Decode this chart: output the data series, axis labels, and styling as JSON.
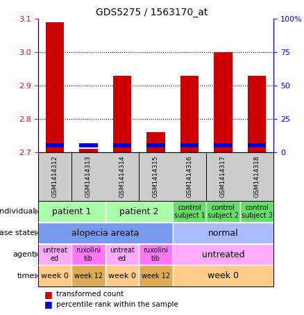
{
  "title": "GDS5275 / 1563170_at",
  "samples": [
    "GSM1414312",
    "GSM1414313",
    "GSM1414314",
    "GSM1414315",
    "GSM1414316",
    "GSM1414317",
    "GSM1414318"
  ],
  "red_values": [
    3.09,
    2.71,
    2.93,
    2.76,
    2.93,
    3.0,
    2.93
  ],
  "blue_bar_height": 0.013,
  "blue_bar_bottom": 2.714,
  "ylim_left": [
    2.7,
    3.1
  ],
  "ylim_right": [
    0,
    100
  ],
  "yticks_left": [
    2.7,
    2.8,
    2.9,
    3.0,
    3.1
  ],
  "yticks_right": [
    0,
    25,
    50,
    75,
    100
  ],
  "bar_color_red": "#cc0000",
  "bar_color_blue": "#0000cc",
  "bar_width": 0.55,
  "hline_values": [
    2.8,
    2.9,
    3.0
  ],
  "xticklabel_bg": "#cccccc",
  "rows": {
    "individual": {
      "label": "individual",
      "cells": [
        {
          "text": "patient 1",
          "span": [
            0,
            2
          ],
          "color": "#aaffaa",
          "fontsize": 9
        },
        {
          "text": "patient 2",
          "span": [
            2,
            4
          ],
          "color": "#aaffaa",
          "fontsize": 9
        },
        {
          "text": "control\nsubject 1",
          "span": [
            4,
            5
          ],
          "color": "#66dd66",
          "fontsize": 7
        },
        {
          "text": "control\nsubject 2",
          "span": [
            5,
            6
          ],
          "color": "#66dd66",
          "fontsize": 7
        },
        {
          "text": "control\nsubject 3",
          "span": [
            6,
            7
          ],
          "color": "#66dd66",
          "fontsize": 7
        }
      ]
    },
    "disease_state": {
      "label": "disease state",
      "cells": [
        {
          "text": "alopecia areata",
          "span": [
            0,
            4
          ],
          "color": "#7799ee",
          "fontsize": 9
        },
        {
          "text": "normal",
          "span": [
            4,
            7
          ],
          "color": "#aabbff",
          "fontsize": 9
        }
      ]
    },
    "agent": {
      "label": "agent",
      "cells": [
        {
          "text": "untreat\ned",
          "span": [
            0,
            1
          ],
          "color": "#ffaaff",
          "fontsize": 7
        },
        {
          "text": "ruxolini\ntib",
          "span": [
            1,
            2
          ],
          "color": "#ff77ff",
          "fontsize": 7
        },
        {
          "text": "untreat\ned",
          "span": [
            2,
            3
          ],
          "color": "#ffaaff",
          "fontsize": 7
        },
        {
          "text": "ruxolini\ntib",
          "span": [
            3,
            4
          ],
          "color": "#ff77ff",
          "fontsize": 7
        },
        {
          "text": "untreated",
          "span": [
            4,
            7
          ],
          "color": "#ffaaff",
          "fontsize": 9
        }
      ]
    },
    "time": {
      "label": "time",
      "cells": [
        {
          "text": "week 0",
          "span": [
            0,
            1
          ],
          "color": "#ffcc88",
          "fontsize": 8
        },
        {
          "text": "week 12",
          "span": [
            1,
            2
          ],
          "color": "#ddaa55",
          "fontsize": 7
        },
        {
          "text": "week 0",
          "span": [
            2,
            3
          ],
          "color": "#ffcc88",
          "fontsize": 8
        },
        {
          "text": "week 12",
          "span": [
            3,
            4
          ],
          "color": "#ddaa55",
          "fontsize": 7
        },
        {
          "text": "week 0",
          "span": [
            4,
            7
          ],
          "color": "#ffcc88",
          "fontsize": 9
        }
      ]
    }
  },
  "row_order": [
    "individual",
    "disease_state",
    "agent",
    "time"
  ],
  "row_labels": [
    "individual",
    "disease state",
    "agent",
    "time"
  ],
  "legend": [
    {
      "color": "#cc0000",
      "label": "transformed count"
    },
    {
      "color": "#0000cc",
      "label": "percentile rank within the sample"
    }
  ],
  "fig_width": 4.38,
  "fig_height": 4.53,
  "dpi": 100
}
